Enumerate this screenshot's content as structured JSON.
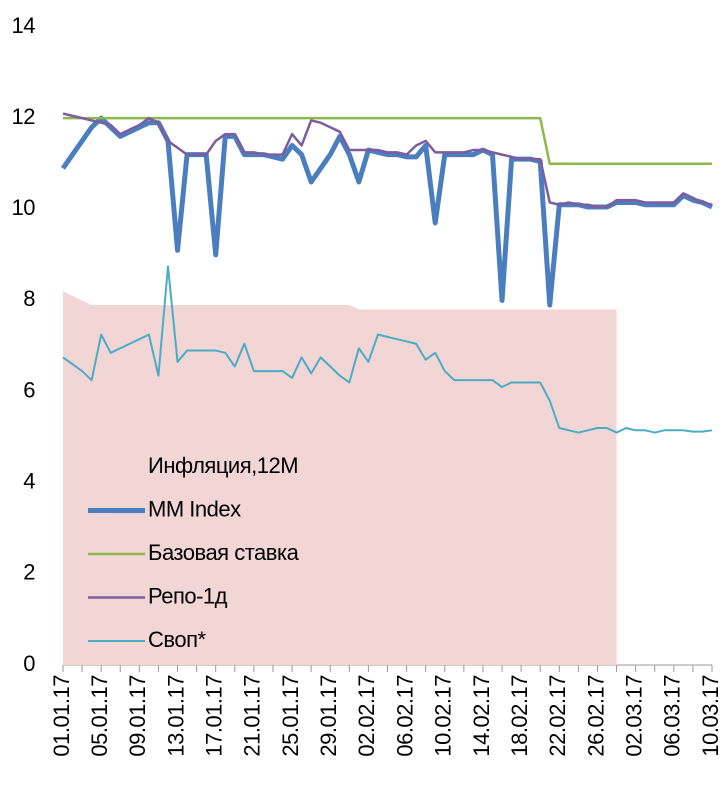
{
  "chart_data": {
    "type": "line",
    "categories": [
      "01.01.17",
      null,
      null,
      null,
      "05.01.17",
      null,
      null,
      null,
      "09.01.17",
      null,
      null,
      null,
      "13.01.17",
      null,
      null,
      null,
      "17.01.17",
      null,
      null,
      null,
      "21.01.17",
      null,
      null,
      null,
      "25.01.17",
      null,
      null,
      null,
      "29.01.17",
      null,
      null,
      null,
      "02.02.17",
      null,
      null,
      null,
      "06.02.17",
      null,
      null,
      null,
      "10.02.17",
      null,
      null,
      null,
      "14.02.17",
      null,
      null,
      null,
      "18.02.17",
      null,
      null,
      null,
      "22.02.17",
      null,
      null,
      null,
      "26.02.17",
      null,
      null,
      null,
      "02.03.17",
      null,
      null,
      null,
      "06.03.17",
      null,
      null,
      null,
      "10.03.17"
    ],
    "ylim": [
      0,
      14
    ],
    "yticks": [
      0,
      2,
      4,
      6,
      8,
      10,
      12,
      14
    ],
    "grid": false,
    "legend": "bottom-left",
    "series": [
      {
        "name": "Инфляция,12М",
        "type": "area",
        "color": "#f2d6d6",
        "values": [
          8.2,
          8.1,
          8.0,
          7.9,
          7.9,
          7.9,
          7.9,
          7.9,
          7.9,
          7.9,
          7.9,
          7.9,
          7.9,
          7.9,
          7.9,
          7.9,
          7.9,
          7.9,
          7.9,
          7.9,
          7.9,
          7.9,
          7.9,
          7.9,
          7.9,
          7.9,
          7.9,
          7.9,
          7.9,
          7.9,
          7.9,
          7.8,
          7.8,
          7.8,
          7.8,
          7.8,
          7.8,
          7.8,
          7.8,
          7.8,
          7.8,
          7.8,
          7.8,
          7.8,
          7.8,
          7.8,
          7.8,
          7.8,
          7.8,
          7.8,
          7.8,
          7.8,
          7.8,
          7.8,
          7.8,
          7.8,
          7.8,
          7.8,
          7.8,
          null,
          null,
          null,
          null,
          null,
          null,
          null,
          null,
          null,
          null
        ]
      },
      {
        "name": "MM Index",
        "type": "line",
        "color": "#4a7ebf",
        "width": 5,
        "values": [
          10.9,
          11.2,
          11.5,
          11.8,
          12.0,
          11.8,
          11.6,
          11.7,
          11.8,
          11.9,
          11.9,
          11.5,
          9.1,
          11.2,
          11.2,
          11.2,
          9.0,
          11.6,
          11.6,
          11.2,
          11.2,
          11.2,
          11.15,
          11.1,
          11.4,
          11.2,
          10.6,
          10.9,
          11.2,
          11.6,
          11.2,
          10.6,
          11.3,
          11.25,
          11.2,
          11.2,
          11.15,
          11.15,
          11.4,
          9.7,
          11.2,
          11.2,
          11.2,
          11.2,
          11.3,
          11.2,
          8.0,
          11.1,
          11.1,
          11.1,
          11.05,
          7.9,
          10.1,
          10.1,
          10.1,
          10.05,
          10.05,
          10.05,
          10.15,
          10.15,
          10.15,
          10.1,
          10.1,
          10.1,
          10.1,
          10.3,
          10.2,
          10.15,
          10.05
        ]
      },
      {
        "name": "Базовая ставка",
        "type": "line",
        "color": "#8db84a",
        "width": 2.5,
        "values": [
          12,
          12,
          12,
          12,
          12,
          12,
          12,
          12,
          12,
          12,
          12,
          12,
          12,
          12,
          12,
          12,
          12,
          12,
          12,
          12,
          12,
          12,
          12,
          12,
          12,
          12,
          12,
          12,
          12,
          12,
          12,
          12,
          12,
          12,
          12,
          12,
          12,
          12,
          12,
          12,
          12,
          12,
          12,
          12,
          12,
          12,
          12,
          12,
          12,
          12,
          12,
          11,
          11,
          11,
          11,
          11,
          11,
          11,
          11,
          11,
          11,
          11,
          11,
          11,
          11,
          11,
          11,
          11,
          11
        ]
      },
      {
        "name": "Репо-1д",
        "type": "line",
        "color": "#7d5c9f",
        "width": 2.5,
        "values": [
          12.1,
          12.05,
          12.0,
          11.95,
          11.9,
          11.85,
          11.65,
          11.75,
          11.85,
          12.0,
          11.9,
          11.5,
          11.35,
          11.2,
          11.2,
          11.2,
          11.5,
          11.65,
          11.65,
          11.25,
          11.25,
          11.2,
          11.2,
          11.2,
          11.65,
          11.4,
          11.95,
          11.9,
          11.8,
          11.7,
          11.3,
          11.3,
          11.3,
          11.3,
          11.25,
          11.25,
          11.2,
          11.4,
          11.5,
          11.25,
          11.25,
          11.25,
          11.25,
          11.3,
          11.3,
          11.25,
          11.2,
          11.15,
          11.1,
          11.1,
          11.1,
          10.15,
          10.1,
          10.15,
          10.1,
          10.1,
          10.05,
          10.05,
          10.2,
          10.2,
          10.2,
          10.15,
          10.15,
          10.15,
          10.15,
          10.35,
          10.25,
          10.15,
          10.1
        ]
      },
      {
        "name": "Своп*",
        "type": "line",
        "color": "#4bacc6",
        "width": 2,
        "values": [
          6.75,
          6.6,
          6.45,
          6.25,
          7.25,
          6.85,
          6.95,
          7.05,
          7.15,
          7.25,
          6.35,
          8.75,
          6.65,
          6.9,
          6.9,
          6.9,
          6.9,
          6.85,
          6.55,
          7.05,
          6.45,
          6.45,
          6.45,
          6.45,
          6.3,
          6.75,
          6.4,
          6.75,
          6.55,
          6.35,
          6.2,
          6.95,
          6.65,
          7.25,
          7.2,
          7.15,
          7.1,
          7.05,
          6.7,
          6.85,
          6.45,
          6.25,
          6.25,
          6.25,
          6.25,
          6.25,
          6.1,
          6.2,
          6.2,
          6.2,
          6.2,
          5.8,
          5.2,
          5.15,
          5.1,
          5.15,
          5.2,
          5.2,
          5.1,
          5.2,
          5.15,
          5.15,
          5.1,
          5.15,
          5.15,
          5.15,
          5.12,
          5.12,
          5.15
        ]
      }
    ]
  }
}
